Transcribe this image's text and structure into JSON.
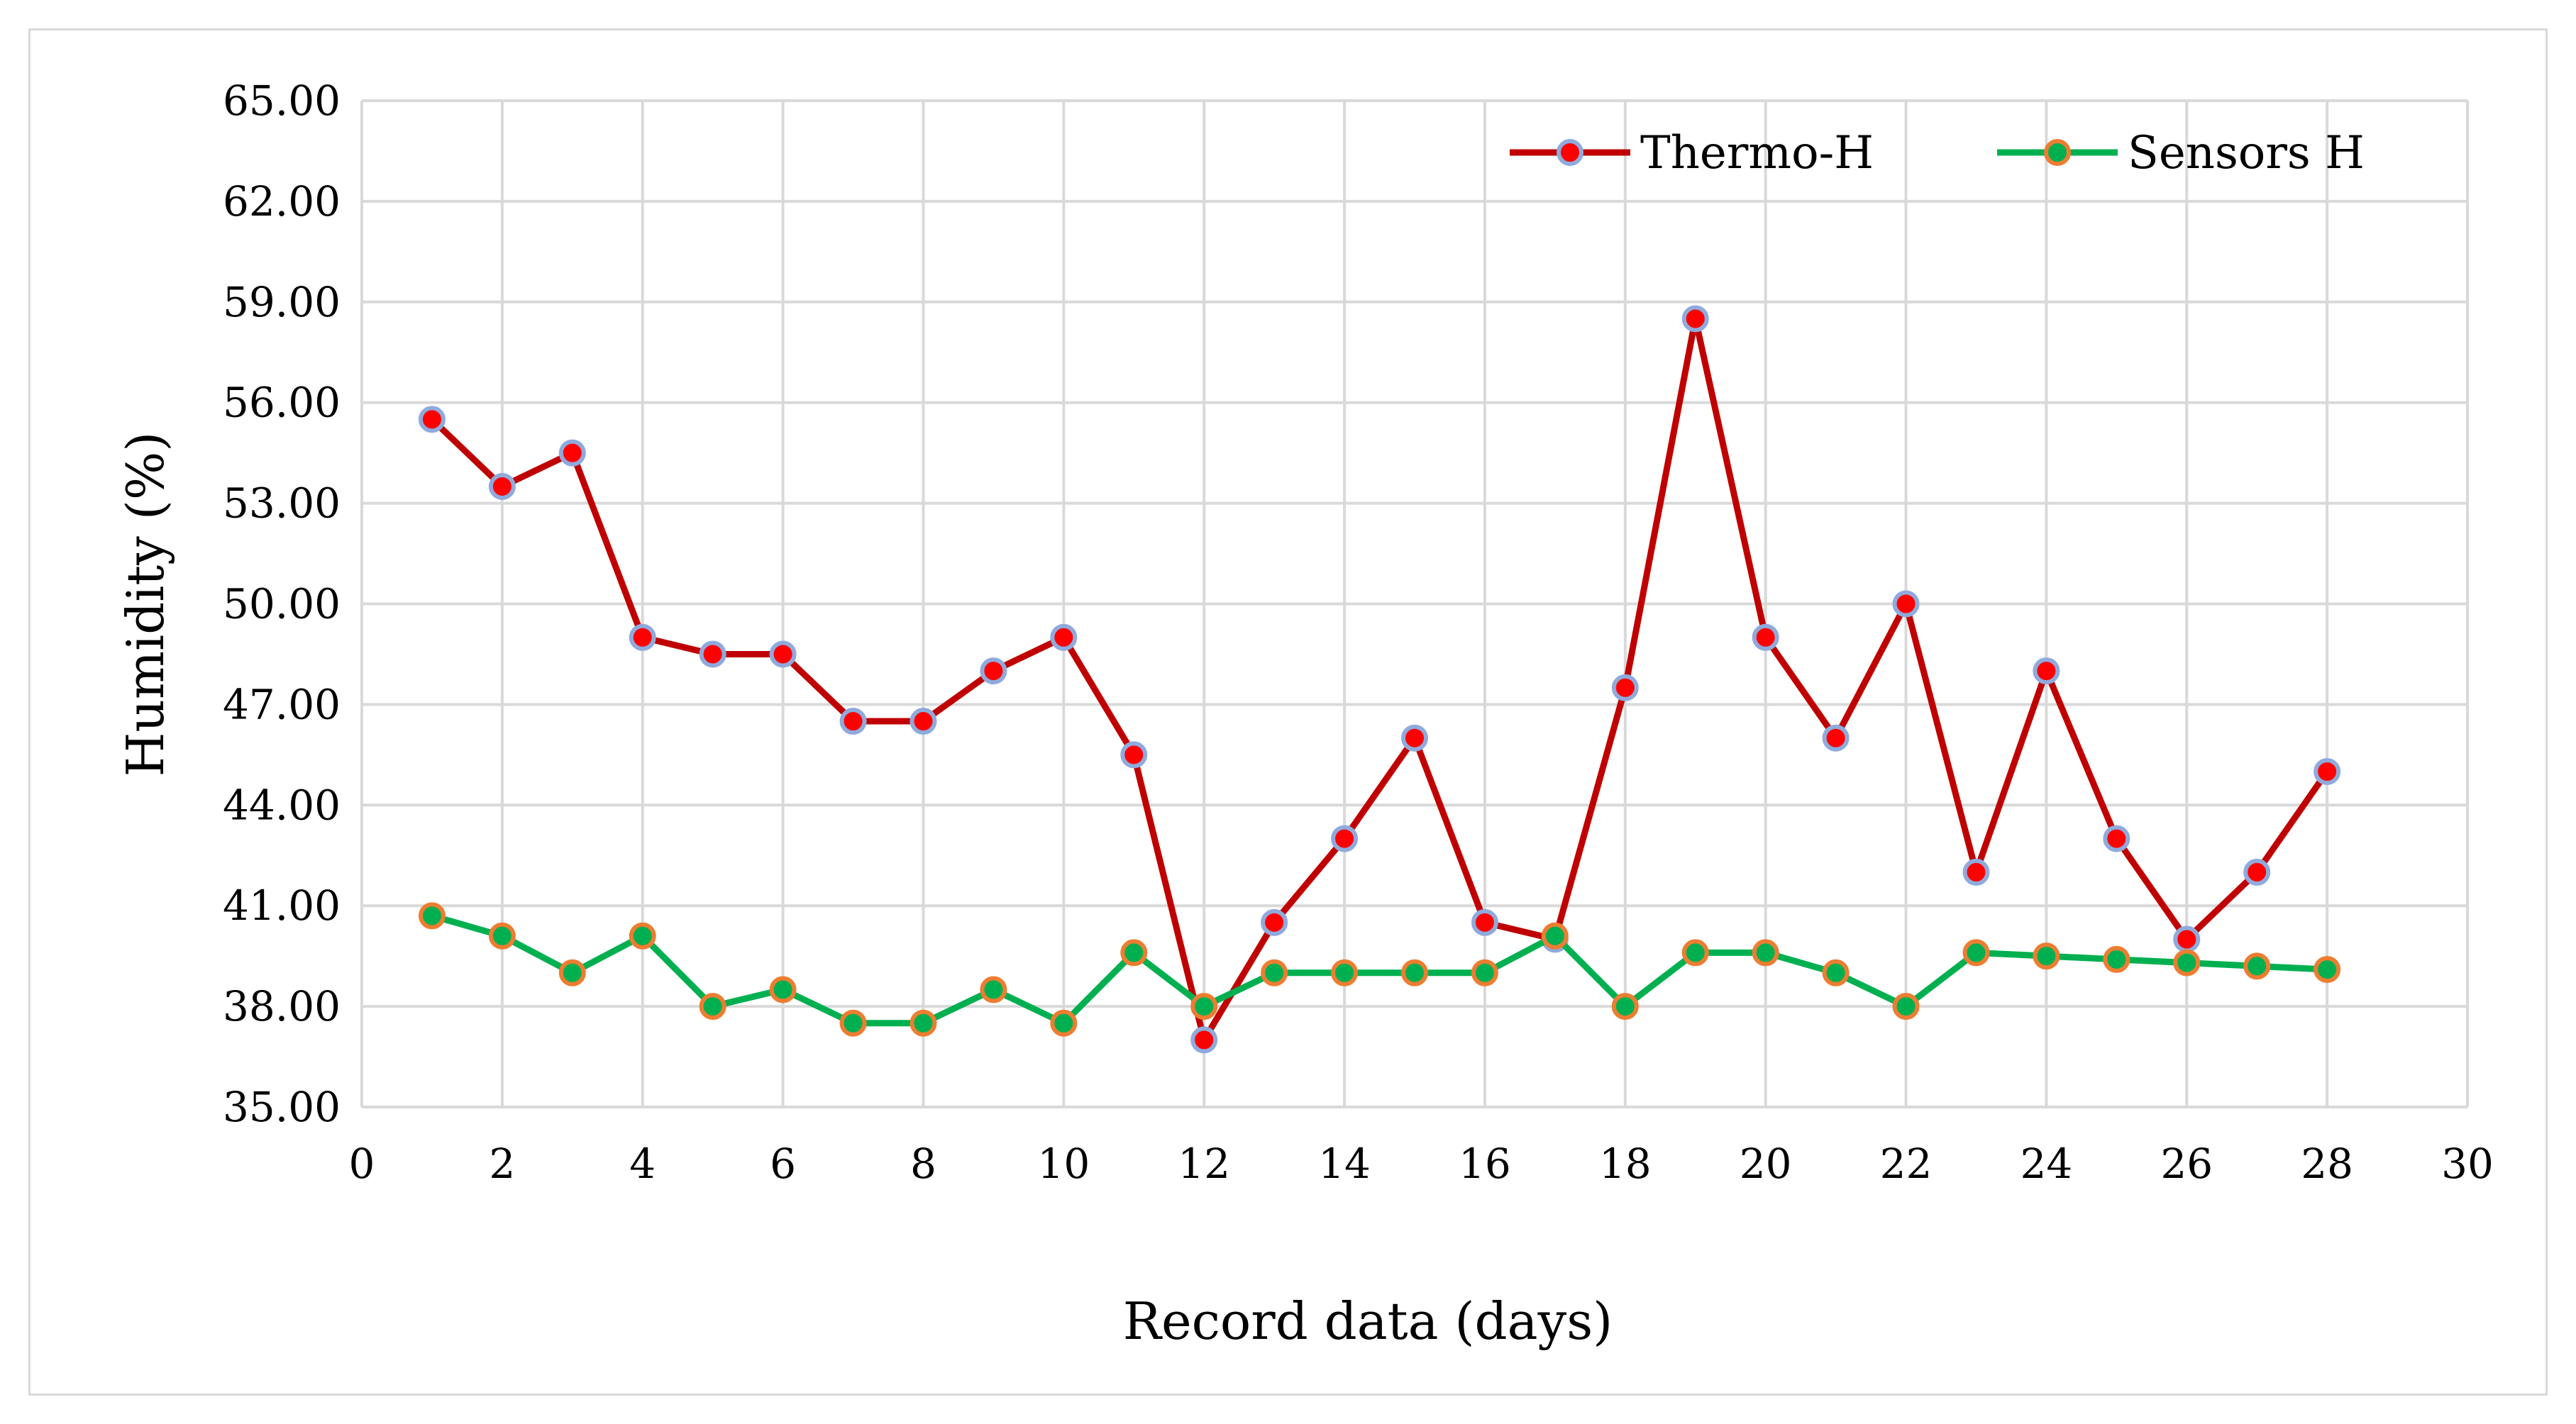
{
  "chart_data": {
    "type": "line",
    "title": "",
    "xlabel": "Record data (days)",
    "ylabel": "Humidity (%)",
    "xlim": [
      0,
      30
    ],
    "ylim": [
      35,
      65
    ],
    "x_ticks": [
      "0",
      "2",
      "4",
      "6",
      "8",
      "10",
      "12",
      "14",
      "16",
      "18",
      "20",
      "22",
      "24",
      "26",
      "28",
      "30"
    ],
    "y_ticks": [
      "35.00",
      "38.00",
      "41.00",
      "44.00",
      "47.00",
      "50.00",
      "53.00",
      "56.00",
      "59.00",
      "62.00",
      "65.00"
    ],
    "grid": true,
    "legend_position": "top-right",
    "x": [
      1,
      2,
      3,
      4,
      5,
      6,
      7,
      8,
      9,
      10,
      11,
      12,
      13,
      14,
      15,
      16,
      17,
      18,
      19,
      20,
      21,
      22,
      23,
      24,
      25,
      26,
      27,
      28
    ],
    "series": [
      {
        "name": "Thermo-H",
        "line_color": "#c00000",
        "marker_fill": "#ff0000",
        "marker_edge": "#8faadc",
        "values": [
          55.5,
          53.5,
          54.5,
          49.0,
          48.5,
          48.5,
          46.5,
          46.5,
          48.0,
          49.0,
          45.5,
          37.0,
          40.5,
          43.0,
          46.0,
          40.5,
          40.0,
          47.5,
          58.5,
          49.0,
          46.0,
          50.0,
          42.0,
          48.0,
          43.0,
          40.0,
          42.0,
          45.0
        ]
      },
      {
        "name": "Sensors H",
        "line_color": "#00b050",
        "marker_fill": "#00b050",
        "marker_edge": "#ed7d31",
        "values": [
          40.7,
          40.1,
          39.0,
          40.1,
          38.0,
          38.5,
          37.5,
          37.5,
          38.5,
          37.5,
          39.6,
          38.0,
          39.0,
          39.0,
          39.0,
          39.0,
          40.1,
          38.0,
          39.6,
          39.6,
          39.0,
          38.0,
          39.6,
          39.5,
          39.4,
          39.3,
          39.2,
          39.1
        ]
      }
    ],
    "gridline_color": "#d9d9d9"
  }
}
